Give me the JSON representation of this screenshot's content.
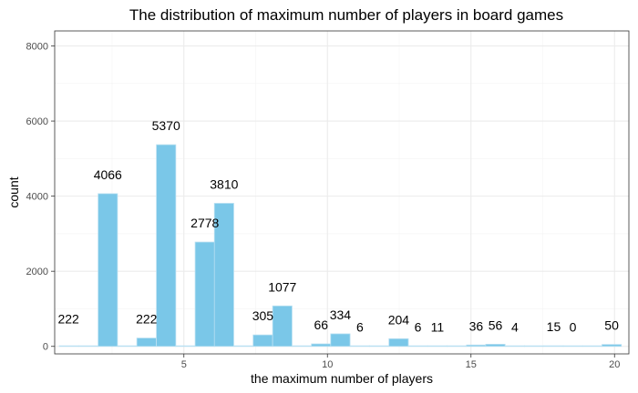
{
  "chart_data": {
    "type": "bar",
    "title": "The distribution of maximum number of players in board games",
    "xlabel": "the maximum number of players",
    "ylabel": "count",
    "xlim": [
      0.5,
      20.5
    ],
    "ylim": [
      -200,
      8400
    ],
    "x_ticks": [
      5,
      10,
      15,
      20
    ],
    "y_ticks": [
      0,
      2000,
      4000,
      6000,
      8000
    ],
    "grid": true,
    "bar_color": "#7ac7e8",
    "bar_outline_color": "#b9e0f2",
    "bins": [
      {
        "x": 1.0,
        "value": 0,
        "label": null
      },
      {
        "x": 1.68,
        "value": 0,
        "label": null
      },
      {
        "x": 2.35,
        "value": 4066,
        "label": "4066"
      },
      {
        "x": 3.03,
        "value": 0,
        "label": null
      },
      {
        "x": 3.7,
        "value": 222,
        "label": "222"
      },
      {
        "x": 4.38,
        "value": 5370,
        "label": "5370"
      },
      {
        "x": 5.05,
        "value": 0,
        "label": null
      },
      {
        "x": 5.73,
        "value": 2778,
        "label": "2778"
      },
      {
        "x": 6.4,
        "value": 3810,
        "label": "3810"
      },
      {
        "x": 7.08,
        "value": 0,
        "label": null
      },
      {
        "x": 7.75,
        "value": 305,
        "label": "305"
      },
      {
        "x": 8.43,
        "value": 1077,
        "label": "1077"
      },
      {
        "x": 9.1,
        "value": 0,
        "label": null
      },
      {
        "x": 9.78,
        "value": 66,
        "label": "66"
      },
      {
        "x": 10.45,
        "value": 334,
        "label": "334"
      },
      {
        "x": 11.13,
        "value": 6,
        "label": "6"
      },
      {
        "x": 11.8,
        "value": 0,
        "label": null
      },
      {
        "x": 12.48,
        "value": 204,
        "label": "204"
      },
      {
        "x": 13.15,
        "value": 6,
        "label": "6"
      },
      {
        "x": 13.83,
        "value": 11,
        "label": "11"
      },
      {
        "x": 14.5,
        "value": 0,
        "label": null
      },
      {
        "x": 15.18,
        "value": 36,
        "label": "36"
      },
      {
        "x": 15.85,
        "value": 56,
        "label": "56"
      },
      {
        "x": 16.53,
        "value": 4,
        "label": "4"
      },
      {
        "x": 17.2,
        "value": 0,
        "label": null
      },
      {
        "x": 17.88,
        "value": 15,
        "label": "15"
      },
      {
        "x": 18.55,
        "value": 0,
        "label": "0"
      },
      {
        "x": 19.23,
        "value": 0,
        "label": null
      },
      {
        "x": 19.9,
        "value": 50,
        "label": "50"
      }
    ],
    "extra_labels": [
      {
        "x": 0.98,
        "value": 222,
        "label": "222"
      }
    ]
  }
}
